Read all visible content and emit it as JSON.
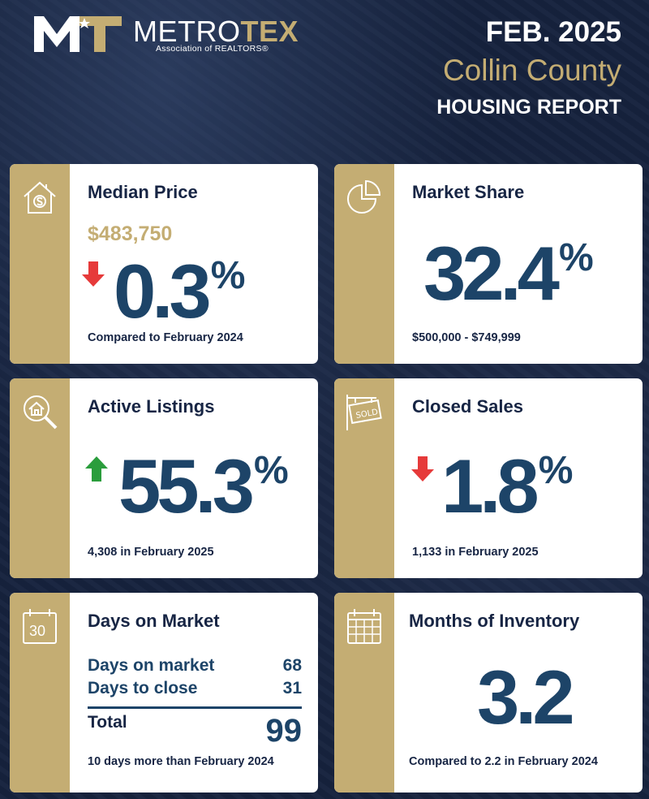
{
  "header": {
    "logo_word_metro": "METRO",
    "logo_word_tex": "TEX",
    "logo_subtitle": "Association of REALTORS®",
    "date": "FEB. 2025",
    "county": "Collin County",
    "report": "HOUSING REPORT"
  },
  "colors": {
    "navy": "#16223d",
    "gold": "#c4ad73",
    "number_blue": "#1d4468",
    "down_red": "#e63a3a",
    "up_green": "#2a9d3c"
  },
  "cards": {
    "median_price": {
      "title": "Median Price",
      "price": "$483,750",
      "change": "0.3",
      "unit": "%",
      "direction": "down",
      "note": "Compared to February 2024",
      "icon": "house-dollar-icon"
    },
    "market_share": {
      "title": "Market Share",
      "value": "32.4",
      "unit": "%",
      "note": "$500,000 - $749,999",
      "icon": "pie-chart-icon"
    },
    "active_listings": {
      "title": "Active Listings",
      "change": "55.3",
      "unit": "%",
      "direction": "up",
      "note": "4,308 in February 2025",
      "icon": "house-search-icon"
    },
    "closed_sales": {
      "title": "Closed Sales",
      "change": "1.8",
      "unit": "%",
      "direction": "down",
      "note": "1,133 in February 2025",
      "icon": "sold-sign-icon"
    },
    "days_on_market": {
      "title": "Days on Market",
      "rows": [
        {
          "label": "Days on market",
          "value": "68"
        },
        {
          "label": "Days to close",
          "value": "31"
        }
      ],
      "total_label": "Total",
      "total_value": "99",
      "note": "10 days more than February 2024",
      "icon": "calendar-30-icon",
      "icon_text": "30"
    },
    "months_inventory": {
      "title": "Months of Inventory",
      "value": "3.2",
      "note": "Compared to 2.2 in February 2024",
      "icon": "calendar-grid-icon"
    }
  }
}
